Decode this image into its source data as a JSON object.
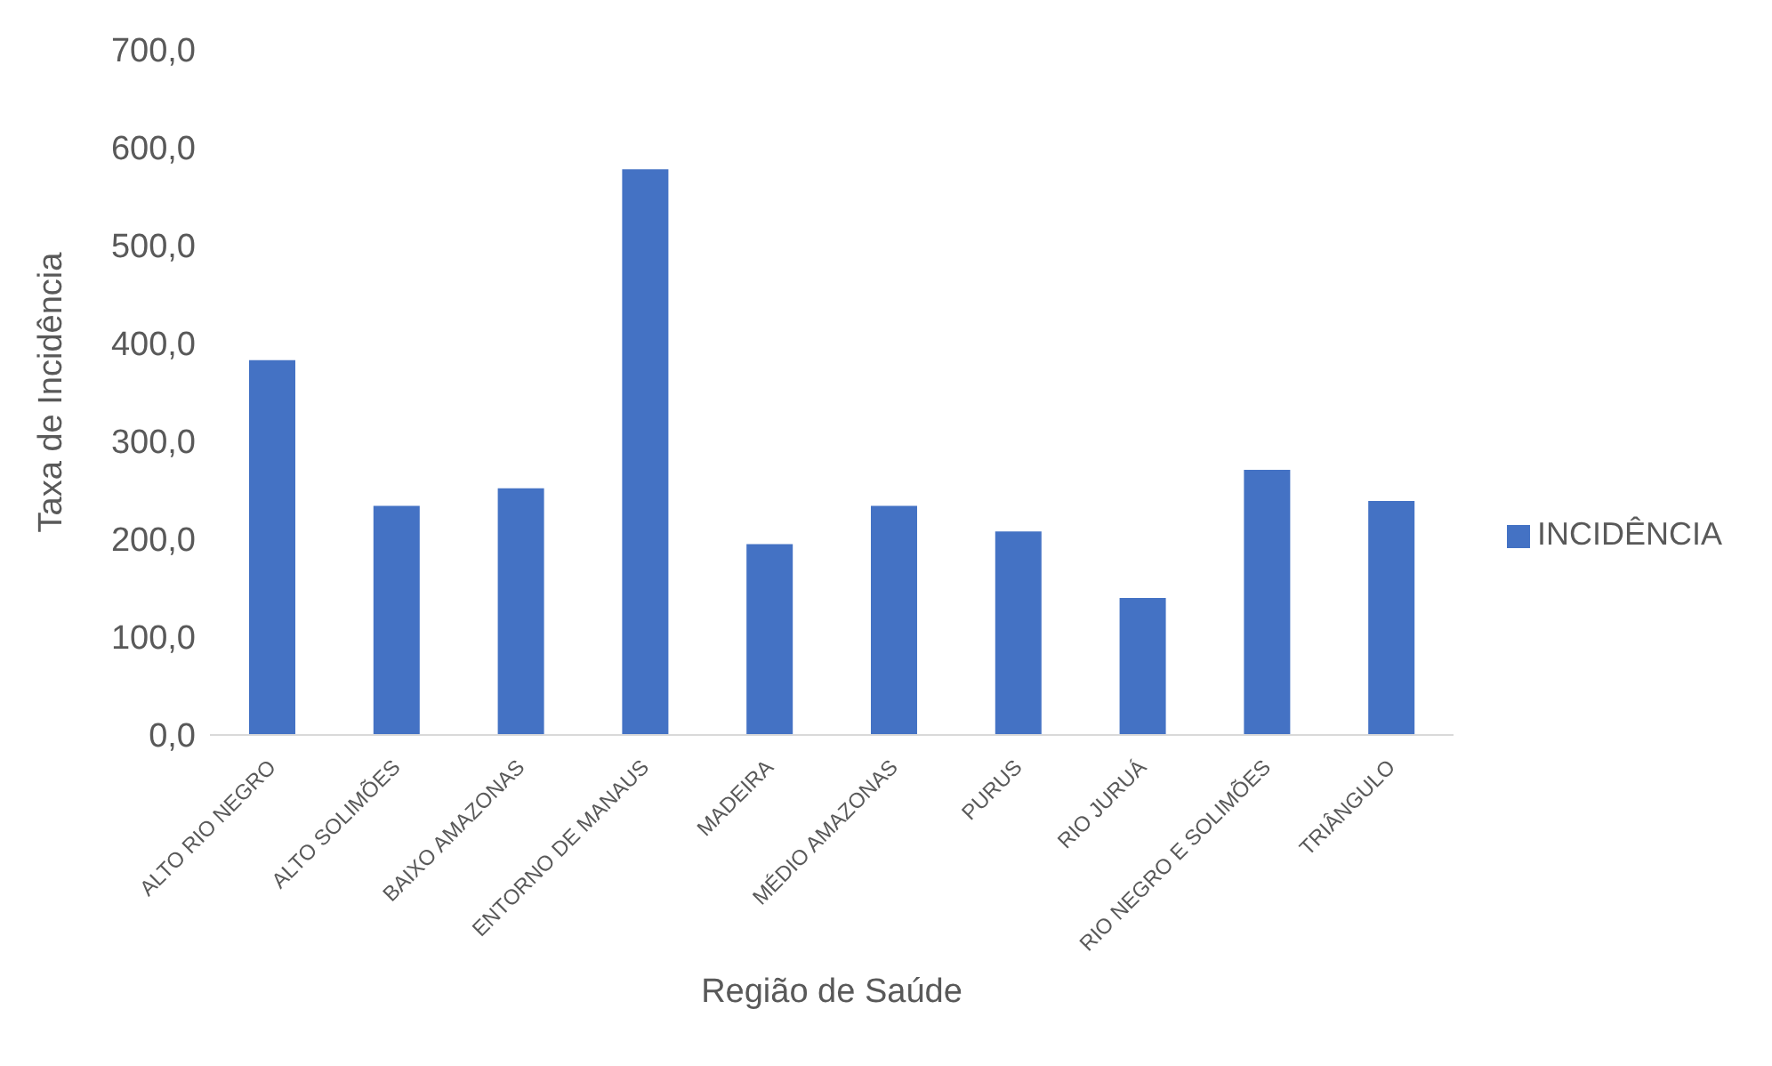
{
  "chart_data": {
    "type": "bar",
    "xlabel": "Região de Saúde",
    "ylabel": "Taxa de Incidência",
    "categories": [
      "ALTO RIO NEGRO",
      "ALTO  SOLIMÕES",
      "BAIXO AMAZONAS",
      "ENTORNO DE MANAUS",
      "MADEIRA",
      "MÉDIO AMAZONAS",
      "PURUS",
      "RIO JURUÁ",
      "RIO NEGRO E SOLIMÕES",
      "TRIÂNGULO"
    ],
    "series": [
      {
        "name": "INCIDÊNCIA",
        "color": "#4472c4",
        "values": [
          383,
          234,
          252,
          578,
          195,
          234,
          208,
          140,
          271,
          239
        ]
      }
    ],
    "ylim": [
      0,
      700
    ],
    "yticks": [
      {
        "value": 0,
        "label": "0,0"
      },
      {
        "value": 100,
        "label": "100,0"
      },
      {
        "value": 200,
        "label": "200,0"
      },
      {
        "value": 300,
        "label": "300,0"
      },
      {
        "value": 400,
        "label": "400,0"
      },
      {
        "value": 500,
        "label": "500,0"
      },
      {
        "value": 600,
        "label": "600,0"
      },
      {
        "value": 700,
        "label": "700,0"
      }
    ],
    "grid": false,
    "legend": "right"
  }
}
